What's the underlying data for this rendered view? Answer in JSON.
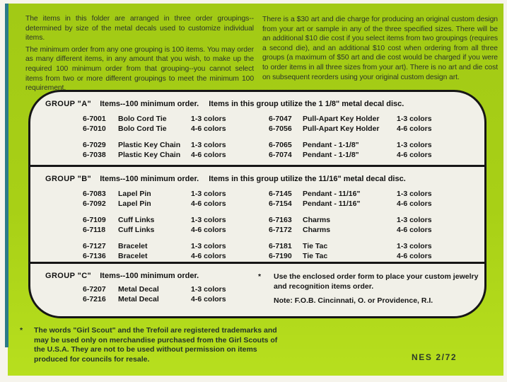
{
  "intro": {
    "left_p1": "The items in this folder are arranged in three order groupings--determined by size of the metal decals used to customize individual items.",
    "left_p2": "The minimum order from any one grouping is 100 items. You may order as many different items, in any amount that you wish, to make up the required 100 minimum order from that grouping--you cannot select items from two or more different groupings to meet the minimum 100 requirement.",
    "right_p1": "There is a $30 art and die charge for producing an original custom design from your art or sample in any of the three specified sizes. There will be an additional $10 die cost if you select items from two groupings (requires a second die), and an additional $10 cost when ordering from all three groups (a maximum of $50 art and die cost would be charged if you were to order items in all three sizes from your art). There is no art and die cost on subsequent reorders using your original custom design art."
  },
  "panel": {
    "groups": [
      {
        "label": "GROUP \"A\"",
        "min_order": "Items--100 minimum order.",
        "desc": "Items in this group utilize the 1 1/8\" metal decal disc.",
        "left": [
          {
            "code": "6-7001",
            "item": "Bolo Cord Tie",
            "colors": "1-3 colors"
          },
          {
            "code": "6-7010",
            "item": "Bolo Cord Tie",
            "colors": "4-6 colors"
          },
          {
            "code": "6-7029",
            "item": "Plastic Key Chain",
            "colors": "1-3 colors"
          },
          {
            "code": "6-7038",
            "item": "Plastic Key Chain",
            "colors": "4-6 colors"
          }
        ],
        "right": [
          {
            "code": "6-7047",
            "item": "Pull-Apart Key Holder",
            "colors": "1-3 colors"
          },
          {
            "code": "6-7056",
            "item": "Pull-Apart Key Holder",
            "colors": "4-6 colors"
          },
          {
            "code": "6-7065",
            "item": "Pendant - 1-1/8\"",
            "colors": "1-3 colors"
          },
          {
            "code": "6-7074",
            "item": "Pendant - 1-1/8\"",
            "colors": "4-6 colors"
          }
        ]
      },
      {
        "label": "GROUP \"B\"",
        "min_order": "Items--100 minimum order.",
        "desc": "Items in this group utilize the 11/16\" metal decal disc.",
        "left": [
          {
            "code": "6-7083",
            "item": "Lapel Pin",
            "colors": "1-3 colors"
          },
          {
            "code": "6-7092",
            "item": "Lapel Pin",
            "colors": "4-6 colors"
          },
          {
            "code": "6-7109",
            "item": "Cuff Links",
            "colors": "1-3 colors"
          },
          {
            "code": "6-7118",
            "item": "Cuff Links",
            "colors": "4-6 colors"
          },
          {
            "code": "6-7127",
            "item": "Bracelet",
            "colors": "1-3 colors"
          },
          {
            "code": "6-7136",
            "item": "Bracelet",
            "colors": "4-6 colors"
          }
        ],
        "right": [
          {
            "code": "6-7145",
            "item": "Pendant - 11/16\"",
            "colors": "1-3 colors"
          },
          {
            "code": "6-7154",
            "item": "Pendant - 11/16\"",
            "colors": "4-6 colors"
          },
          {
            "code": "6-7163",
            "item": "Charms",
            "colors": "1-3 colors"
          },
          {
            "code": "6-7172",
            "item": "Charms",
            "colors": "4-6 colors"
          },
          {
            "code": "6-7181",
            "item": "Tie Tac",
            "colors": "1-3 colors"
          },
          {
            "code": "6-7190",
            "item": "Tie Tac",
            "colors": "4-6 colors"
          }
        ]
      },
      {
        "label": "GROUP \"C\"",
        "min_order": "Items--100 minimum order.",
        "desc": "",
        "left": [
          {
            "code": "6-7207",
            "item": "Metal Decal",
            "colors": "1-3 colors"
          },
          {
            "code": "6-7216",
            "item": "Metal Decal",
            "colors": "4-6 colors"
          }
        ],
        "right": []
      }
    ],
    "order_note": {
      "marker": "*",
      "text": "Use the enclosed order form to place your custom jewelry and recognition items order.",
      "note": "Note:  F.O.B.  Cincinnati, O. or Providence, R.I."
    }
  },
  "footer": {
    "marker": "*",
    "trademark_note": "The words \"Girl Scout\" and the Trefoil are registered trademarks and may be used only on merchandise purchased from the Girl Scouts of the U.S.A. They are not to be used without permission on items produced for councils for resale.",
    "form_code": "NES 2/72"
  },
  "colors": {
    "background_green": "#a8d016",
    "spine_teal": "#2c7a88",
    "panel_background": "#f1f0e8",
    "ink": "#161616",
    "intro_text": "#2d3529"
  }
}
